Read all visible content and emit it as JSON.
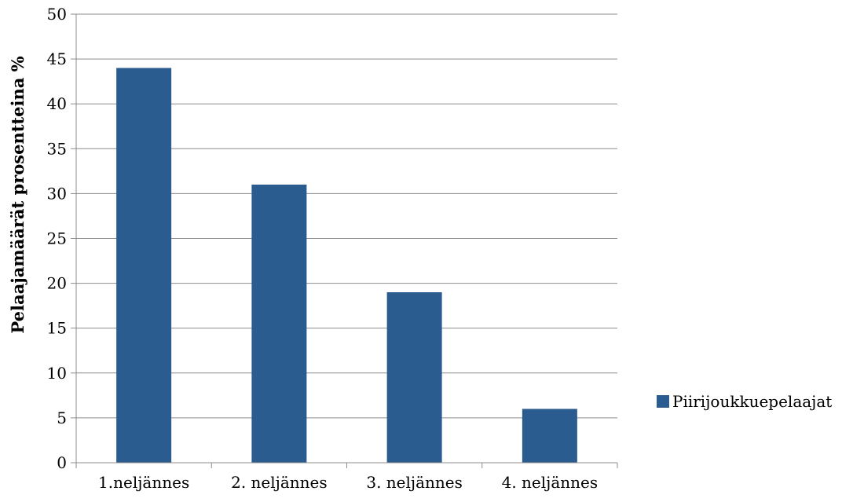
{
  "chart_data": {
    "type": "bar",
    "categories": [
      "1.neljännes",
      "2. neljännes",
      "3. neljännes",
      "4. neljännes"
    ],
    "series": [
      {
        "name": "Piirijoukkuepelaajat",
        "values": [
          44,
          31,
          19,
          6
        ],
        "color": "#2A5C8F"
      }
    ],
    "title": "",
    "xlabel": "",
    "ylabel": "Pelaajamäärät prosentteina %",
    "ylim": [
      0,
      50
    ],
    "yticks": [
      0,
      5,
      10,
      15,
      20,
      25,
      30,
      35,
      40,
      45,
      50
    ],
    "grid": true,
    "legend_position": "right"
  }
}
